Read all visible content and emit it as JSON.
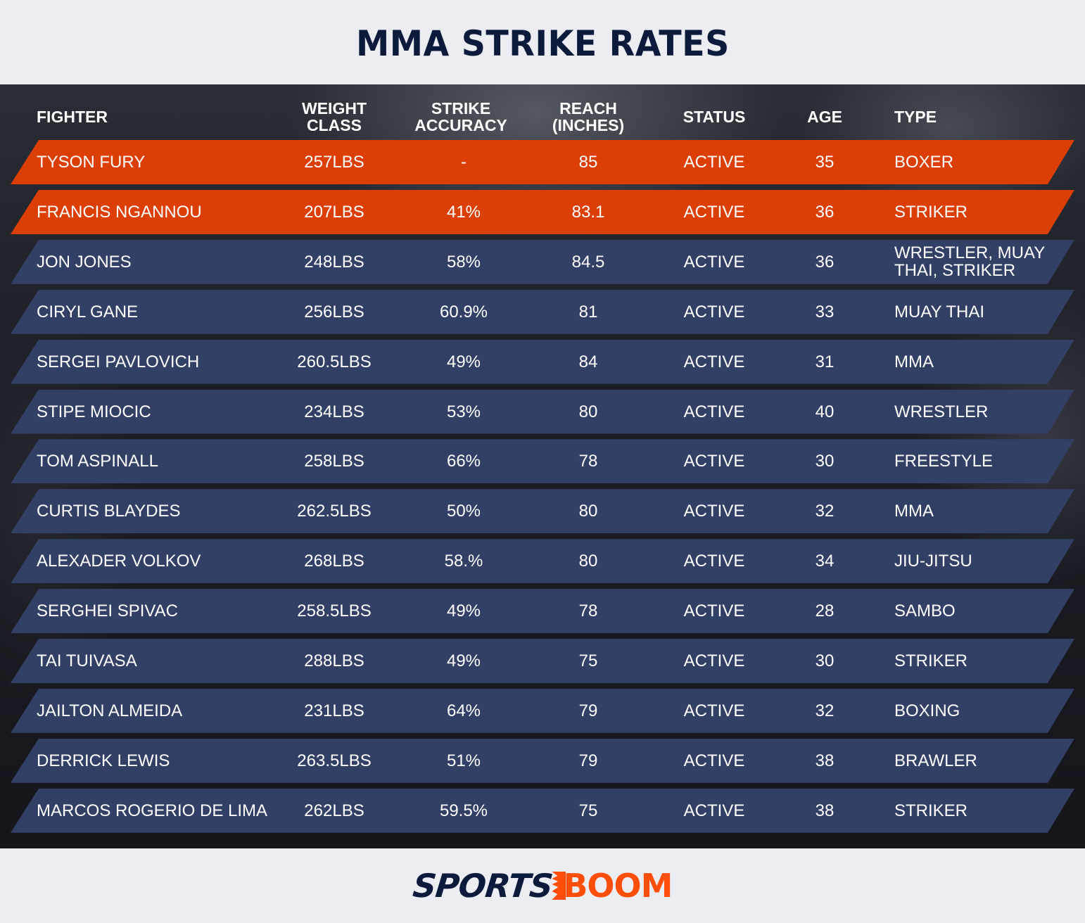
{
  "title": "MMA STRIKE RATES",
  "footer": {
    "brand_part1": "SPORTS",
    "brand_part2": "BOOM"
  },
  "colors": {
    "highlight_row": "#dc3f06",
    "normal_row": "#334066",
    "title": "#0c1a3c",
    "brand_orange": "#ff4d0a"
  },
  "table": {
    "headers": {
      "fighter": "FIGHTER",
      "weight": "WEIGHT\nCLASS",
      "accuracy": "STRIKE\nACCURACY",
      "reach": "REACH\n(INCHES)",
      "status": "STATUS",
      "age": "AGE",
      "type": "TYPE"
    },
    "rows": [
      {
        "fighter": "TYSON FURY",
        "weight": "257LBS",
        "accuracy": "-",
        "reach": "85",
        "status": "ACTIVE",
        "age": "35",
        "type": "BOXER",
        "highlight": true
      },
      {
        "fighter": "FRANCIS NGANNOU",
        "weight": "207LBS",
        "accuracy": "41%",
        "reach": "83.1",
        "status": "ACTIVE",
        "age": "36",
        "type": "STRIKER",
        "highlight": true
      },
      {
        "fighter": "JON JONES",
        "weight": "248LBS",
        "accuracy": "58%",
        "reach": "84.5",
        "status": "ACTIVE",
        "age": "36",
        "type": "WRESTLER, MUAY THAI, STRIKER",
        "highlight": false
      },
      {
        "fighter": "CIRYL GANE",
        "weight": "256LBS",
        "accuracy": "60.9%",
        "reach": "81",
        "status": "ACTIVE",
        "age": "33",
        "type": "MUAY THAI",
        "highlight": false
      },
      {
        "fighter": "SERGEI PAVLOVICH",
        "weight": "260.5LBS",
        "accuracy": "49%",
        "reach": "84",
        "status": "ACTIVE",
        "age": "31",
        "type": "MMA",
        "highlight": false
      },
      {
        "fighter": "STIPE MIOCIC",
        "weight": "234LBS",
        "accuracy": "53%",
        "reach": "80",
        "status": "ACTIVE",
        "age": "40",
        "type": "WRESTLER",
        "highlight": false
      },
      {
        "fighter": "TOM ASPINALL",
        "weight": "258LBS",
        "accuracy": "66%",
        "reach": "78",
        "status": "ACTIVE",
        "age": "30",
        "type": "FREESTYLE",
        "highlight": false
      },
      {
        "fighter": "CURTIS BLAYDES",
        "weight": "262.5LBS",
        "accuracy": "50%",
        "reach": "80",
        "status": "ACTIVE",
        "age": "32",
        "type": "MMA",
        "highlight": false
      },
      {
        "fighter": "ALEXADER VOLKOV",
        "weight": "268LBS",
        "accuracy": "58.%",
        "reach": "80",
        "status": "ACTIVE",
        "age": "34",
        "type": "JIU-JITSU",
        "highlight": false
      },
      {
        "fighter": "SERGHEI SPIVAC",
        "weight": "258.5LBS",
        "accuracy": "49%",
        "reach": "78",
        "status": "ACTIVE",
        "age": "28",
        "type": "SAMBO",
        "highlight": false
      },
      {
        "fighter": "TAI TUIVASA",
        "weight": "288LBS",
        "accuracy": "49%",
        "reach": "75",
        "status": "ACTIVE",
        "age": "30",
        "type": "STRIKER",
        "highlight": false
      },
      {
        "fighter": "JAILTON ALMEIDA",
        "weight": "231LBS",
        "accuracy": "64%",
        "reach": "79",
        "status": "ACTIVE",
        "age": "32",
        "type": "BOXING",
        "highlight": false
      },
      {
        "fighter": "DERRICK LEWIS",
        "weight": "263.5LBS",
        "accuracy": "51%",
        "reach": "79",
        "status": "ACTIVE",
        "age": "38",
        "type": "BRAWLER",
        "highlight": false
      },
      {
        "fighter": "MARCOS ROGERIO DE LIMA",
        "weight": "262LBS",
        "accuracy": "59.5%",
        "reach": "75",
        "status": "ACTIVE",
        "age": "38",
        "type": "STRIKER",
        "highlight": false
      }
    ]
  },
  "chart_data": {
    "type": "table",
    "title": "MMA STRIKE RATES",
    "columns": [
      "FIGHTER",
      "WEIGHT CLASS",
      "STRIKE ACCURACY",
      "REACH (INCHES)",
      "STATUS",
      "AGE",
      "TYPE"
    ],
    "rows": [
      [
        "TYSON FURY",
        "257LBS",
        "-",
        "85",
        "ACTIVE",
        "35",
        "BOXER"
      ],
      [
        "FRANCIS NGANNOU",
        "207LBS",
        "41%",
        "83.1",
        "ACTIVE",
        "36",
        "STRIKER"
      ],
      [
        "JON JONES",
        "248LBS",
        "58%",
        "84.5",
        "ACTIVE",
        "36",
        "WRESTLER, MUAY THAI, STRIKER"
      ],
      [
        "CIRYL GANE",
        "256LBS",
        "60.9%",
        "81",
        "ACTIVE",
        "33",
        "MUAY THAI"
      ],
      [
        "SERGEI PAVLOVICH",
        "260.5LBS",
        "49%",
        "84",
        "ACTIVE",
        "31",
        "MMA"
      ],
      [
        "STIPE MIOCIC",
        "234LBS",
        "53%",
        "80",
        "ACTIVE",
        "40",
        "WRESTLER"
      ],
      [
        "TOM ASPINALL",
        "258LBS",
        "66%",
        "78",
        "ACTIVE",
        "30",
        "FREESTYLE"
      ],
      [
        "CURTIS BLAYDES",
        "262.5LBS",
        "50%",
        "80",
        "ACTIVE",
        "32",
        "MMA"
      ],
      [
        "ALEXADER VOLKOV",
        "268LBS",
        "58.%",
        "80",
        "ACTIVE",
        "34",
        "JIU-JITSU"
      ],
      [
        "SERGHEI SPIVAC",
        "258.5LBS",
        "49%",
        "78",
        "ACTIVE",
        "28",
        "SAMBO"
      ],
      [
        "TAI TUIVASA",
        "288LBS",
        "49%",
        "75",
        "ACTIVE",
        "30",
        "STRIKER"
      ],
      [
        "JAILTON ALMEIDA",
        "231LBS",
        "64%",
        "79",
        "ACTIVE",
        "32",
        "BOXING"
      ],
      [
        "DERRICK LEWIS",
        "263.5LBS",
        "51%",
        "79",
        "ACTIVE",
        "38",
        "BRAWLER"
      ],
      [
        "MARCOS ROGERIO DE LIMA",
        "262LBS",
        "59.5%",
        "75",
        "ACTIVE",
        "38",
        "STRIKER"
      ]
    ],
    "highlighted_rows": [
      "TYSON FURY",
      "FRANCIS NGANNOU"
    ]
  }
}
